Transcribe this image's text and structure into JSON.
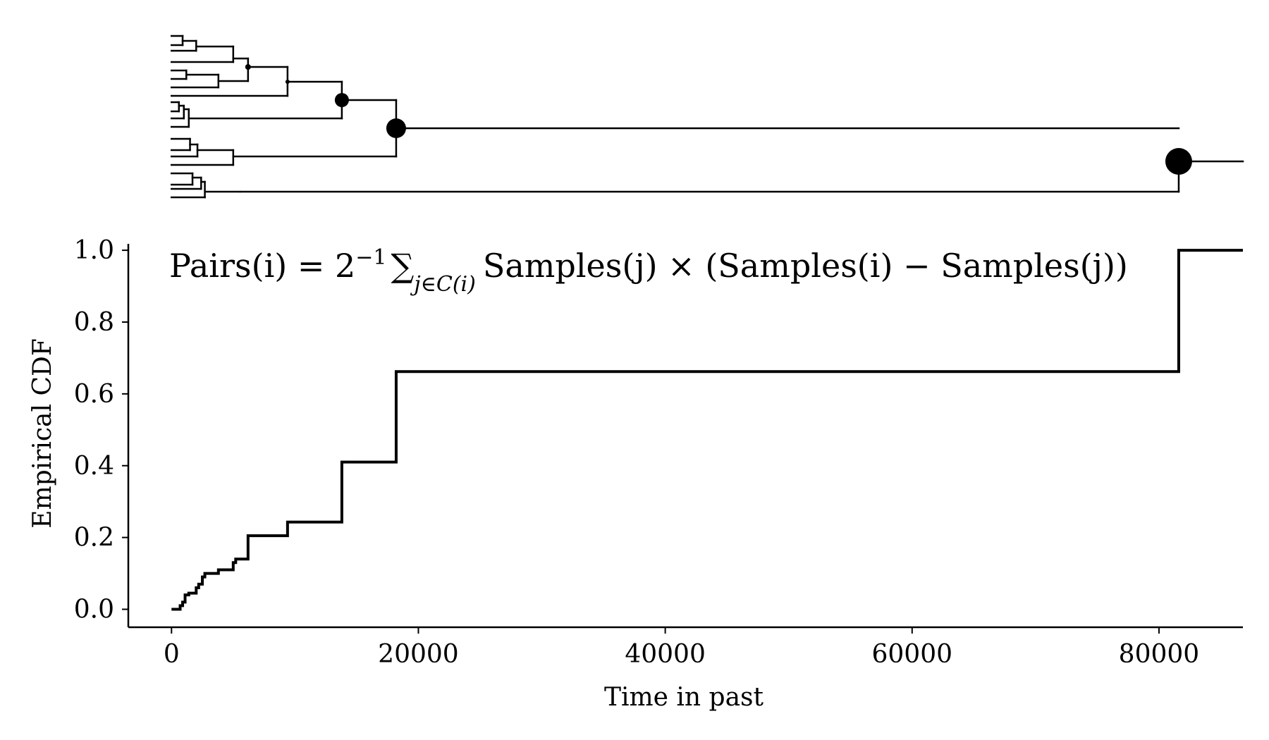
{
  "chart_data": [
    {
      "type": "dendrogram",
      "description_scale": "same time axis as the CDF plot below",
      "node_marker_color": "#000000",
      "leaves": 24,
      "node_times": [
        81600,
        18200,
        13800,
        9400,
        6200,
        5000,
        3800,
        2700,
        2400,
        2100,
        1700,
        1500,
        1200,
        1000,
        900,
        800,
        600,
        500,
        300,
        200,
        100,
        100,
        100
      ]
    },
    {
      "type": "line",
      "subtype": "step",
      "formula": {
        "lhs": "Pairs(i) = 2",
        "exp": "−1",
        "sum": "∑",
        "sub": "j∈C(i)",
        "rhs": "Samples(j) × (Samples(i) − Samples(j))"
      },
      "xlabel": "Time in past",
      "ylabel": "Empirical CDF",
      "xlim": [
        -3500,
        86800
      ],
      "ylim": [
        -0.05,
        1.01
      ],
      "x_ticks": [
        0,
        20000,
        40000,
        60000,
        80000
      ],
      "x_tick_labels": [
        "0",
        "20000",
        "40000",
        "60000",
        "80000"
      ],
      "y_ticks": [
        0.0,
        0.2,
        0.4,
        0.6,
        0.8,
        1.0
      ],
      "y_tick_labels": [
        "0.0",
        "0.2",
        "0.4",
        "0.6",
        "0.8",
        "1.0"
      ],
      "grid": false,
      "line_color": "#000000",
      "x": [
        0,
        700,
        900,
        1100,
        1400,
        2000,
        2200,
        2500,
        2700,
        3800,
        5000,
        5200,
        6200,
        9400,
        13800,
        18200,
        81600,
        86800
      ],
      "y": [
        0.0,
        0.01,
        0.02,
        0.04,
        0.045,
        0.06,
        0.07,
        0.09,
        0.1,
        0.11,
        0.13,
        0.14,
        0.205,
        0.243,
        0.41,
        0.662,
        1.0,
        1.0
      ]
    }
  ]
}
